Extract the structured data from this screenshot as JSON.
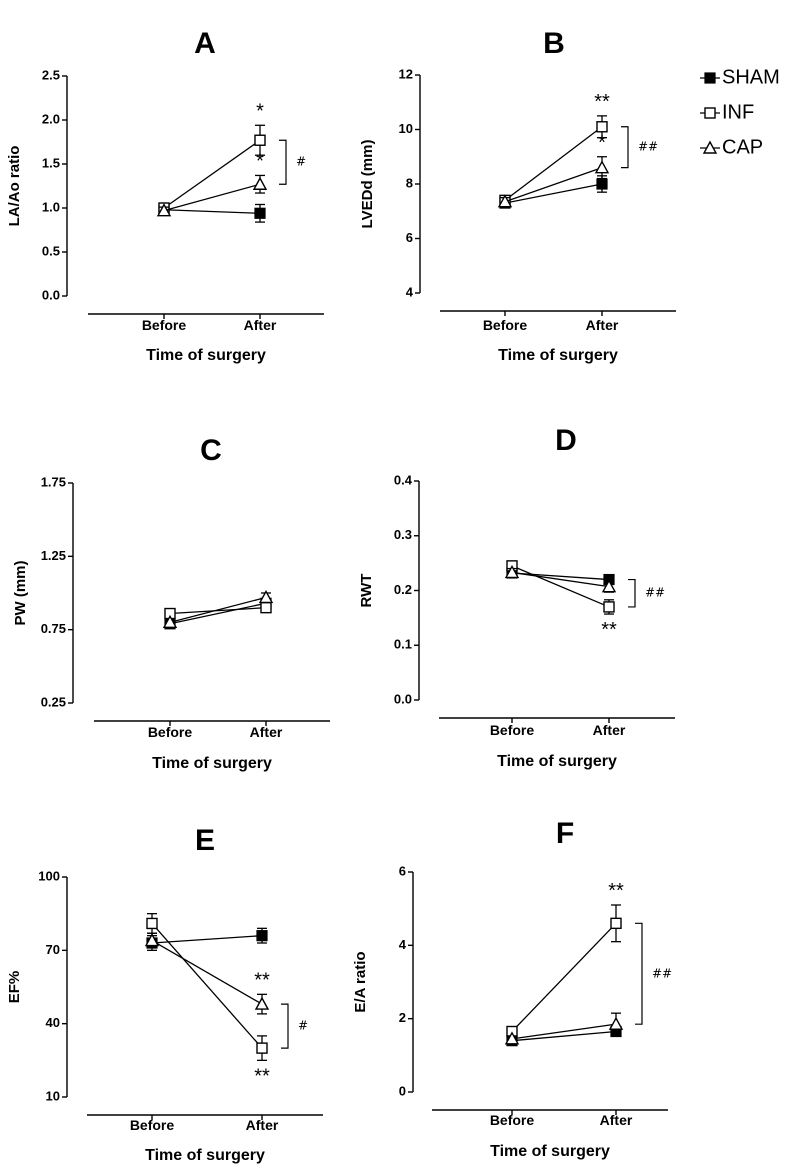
{
  "legend": [
    {
      "name": "SHAM",
      "marker": "square-filled"
    },
    {
      "name": "INF",
      "marker": "square-open"
    },
    {
      "name": "CAP",
      "marker": "triangle-open"
    }
  ],
  "chart_data": [
    {
      "panel": "A",
      "type": "line",
      "categories": [
        "Before",
        "After"
      ],
      "xlabel": "Time of surgery",
      "ylabel": "LA/Ao ratio",
      "ylim": [
        0,
        2.5
      ],
      "yticks": [
        "0.0",
        "0.5",
        "1.0",
        "1.5",
        "2.0",
        "2.5"
      ],
      "series": [
        {
          "name": "SHAM",
          "values": [
            0.98,
            0.94
          ],
          "err": [
            0.04,
            0.1
          ]
        },
        {
          "name": "INF",
          "values": [
            1.0,
            1.77
          ],
          "err": [
            0.04,
            0.17
          ]
        },
        {
          "name": "CAP",
          "values": [
            0.97,
            1.27
          ],
          "err": [
            0.04,
            0.1
          ]
        }
      ],
      "annotations": [
        {
          "series": "INF",
          "cat": 1,
          "text": "*",
          "pos": "above"
        },
        {
          "series": "CAP",
          "cat": 1,
          "text": "*",
          "pos": "above"
        }
      ],
      "bracket": {
        "from": 1.77,
        "to": 1.27,
        "text": "#"
      }
    },
    {
      "panel": "B",
      "type": "line",
      "categories": [
        "Before",
        "After"
      ],
      "xlabel": "Time of surgery",
      "ylabel": "LVEDd (mm)",
      "ylim": [
        4,
        12
      ],
      "yticks": [
        "4",
        "6",
        "8",
        "10",
        "12"
      ],
      "series": [
        {
          "name": "SHAM",
          "values": [
            7.3,
            8.0
          ],
          "err": [
            0.15,
            0.3
          ]
        },
        {
          "name": "INF",
          "values": [
            7.4,
            10.1
          ],
          "err": [
            0.15,
            0.4
          ]
        },
        {
          "name": "CAP",
          "values": [
            7.35,
            8.6
          ],
          "err": [
            0.15,
            0.4
          ]
        }
      ],
      "annotations": [
        {
          "series": "INF",
          "cat": 1,
          "text": "**",
          "pos": "above"
        },
        {
          "series": "CAP",
          "cat": 1,
          "text": "*",
          "pos": "above"
        }
      ],
      "bracket": {
        "from": 10.1,
        "to": 8.6,
        "text": "##"
      }
    },
    {
      "panel": "C",
      "type": "line",
      "categories": [
        "Before",
        "After"
      ],
      "xlabel": "Time of surgery",
      "ylabel": "PW (mm)",
      "ylim": [
        0.25,
        1.75
      ],
      "yticks": [
        "0.25",
        "0.75",
        "1.25",
        "1.75"
      ],
      "series": [
        {
          "name": "SHAM",
          "values": [
            0.79,
            0.93
          ],
          "err": [
            0.02,
            0.03
          ]
        },
        {
          "name": "INF",
          "values": [
            0.86,
            0.9
          ],
          "err": [
            0.02,
            0.03
          ]
        },
        {
          "name": "CAP",
          "values": [
            0.8,
            0.97
          ],
          "err": [
            0.02,
            0.03
          ]
        }
      ],
      "annotations": [],
      "bracket": null
    },
    {
      "panel": "D",
      "type": "line",
      "categories": [
        "Before",
        "After"
      ],
      "xlabel": "Time of surgery",
      "ylabel": "RWT",
      "ylim": [
        0,
        0.4
      ],
      "yticks": [
        "0.0",
        "0.1",
        "0.2",
        "0.3",
        "0.4"
      ],
      "series": [
        {
          "name": "SHAM",
          "values": [
            0.232,
            0.22
          ],
          "err": [
            0.007,
            0.008
          ]
        },
        {
          "name": "INF",
          "values": [
            0.245,
            0.17
          ],
          "err": [
            0.008,
            0.013
          ]
        },
        {
          "name": "CAP",
          "values": [
            0.233,
            0.207
          ],
          "err": [
            0.007,
            0.01
          ]
        }
      ],
      "annotations": [
        {
          "series": "INF",
          "cat": 1,
          "text": "**",
          "pos": "below"
        }
      ],
      "bracket": {
        "from": 0.22,
        "to": 0.17,
        "text": "##"
      }
    },
    {
      "panel": "E",
      "type": "line",
      "categories": [
        "Before",
        "After"
      ],
      "xlabel": "Time of surgery",
      "ylabel": "EF%",
      "ylim": [
        10,
        100
      ],
      "yticks": [
        "10",
        "40",
        "70",
        "100"
      ],
      "series": [
        {
          "name": "SHAM",
          "values": [
            73,
            76
          ],
          "err": [
            3,
            3
          ]
        },
        {
          "name": "INF",
          "values": [
            81,
            30
          ],
          "err": [
            4,
            5
          ]
        },
        {
          "name": "CAP",
          "values": [
            74,
            48
          ],
          "err": [
            3,
            4
          ]
        }
      ],
      "annotations": [
        {
          "series": "CAP",
          "cat": 1,
          "text": "**",
          "pos": "above"
        },
        {
          "series": "INF",
          "cat": 1,
          "text": "**",
          "pos": "below"
        }
      ],
      "bracket": {
        "from": 48,
        "to": 30,
        "text": "#"
      }
    },
    {
      "panel": "F",
      "type": "line",
      "categories": [
        "Before",
        "After"
      ],
      "xlabel": "Time of surgery",
      "ylabel": "E/A ratio",
      "ylim": [
        0,
        6
      ],
      "yticks": [
        "0",
        "2",
        "4",
        "6"
      ],
      "series": [
        {
          "name": "SHAM",
          "values": [
            1.4,
            1.65
          ],
          "err": [
            0.08,
            0.1
          ]
        },
        {
          "name": "INF",
          "values": [
            1.65,
            4.6
          ],
          "err": [
            0.1,
            0.5
          ]
        },
        {
          "name": "CAP",
          "values": [
            1.45,
            1.85
          ],
          "err": [
            0.08,
            0.3
          ]
        }
      ],
      "annotations": [
        {
          "series": "INF",
          "cat": 1,
          "text": "**",
          "pos": "above"
        }
      ],
      "bracket": {
        "from": 4.6,
        "to": 1.85,
        "text": "##"
      }
    }
  ]
}
